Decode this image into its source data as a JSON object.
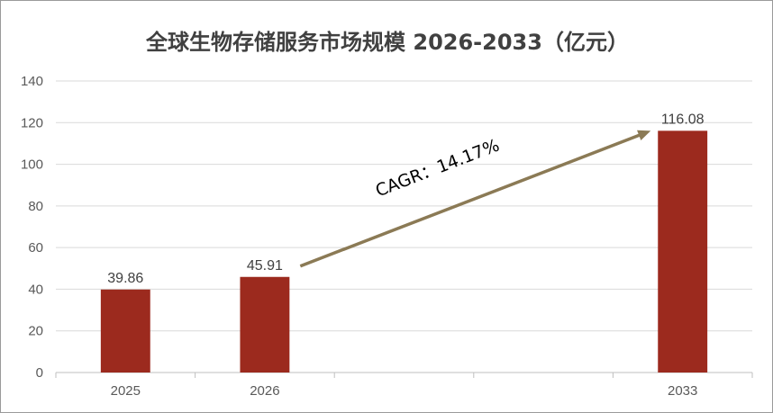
{
  "chart_data": {
    "type": "bar",
    "title": "全球生物存储服务市场规模 2026-2033（亿元）",
    "categories": [
      "2025",
      "2026",
      "",
      "",
      "2033"
    ],
    "values": [
      39.86,
      45.91,
      null,
      null,
      116.08
    ],
    "data_labels": [
      "39.86",
      "45.91",
      "",
      "",
      "116.08"
    ],
    "ylim": [
      0,
      140
    ],
    "yticks": [
      0,
      20,
      40,
      60,
      80,
      100,
      120,
      140
    ],
    "grid": true,
    "annotation": {
      "text": "CAGR：14.17%",
      "from_category_index": 1,
      "to_category_index": 4
    },
    "colors": {
      "bar": "#9c2a1e",
      "arrow": "#8b7a55",
      "grid": "#d9d9d9",
      "axis": "#bfbfbf"
    }
  }
}
